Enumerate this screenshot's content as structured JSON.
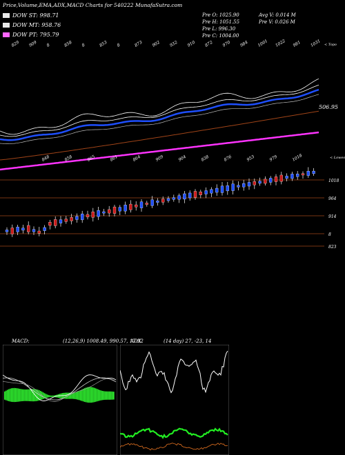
{
  "title": "Price,Volume,EMA,ADX,MACD Charts for 540222  MunafaSutra.com",
  "legend": [
    {
      "label": "DOW ST: 998.71",
      "color": "#e8e8e8"
    },
    {
      "label": "DOW MT: 958.76",
      "color": "#e8e8e8"
    },
    {
      "label": "DOW PT: 795.79",
      "color": "#ff66ff"
    }
  ],
  "info": {
    "open": "Pre   O: 1025.90",
    "high": "Pre   H: 1051.55",
    "low": "Pre   L: 996.30",
    "close": "Pre   C: 1004.00",
    "avg_vol": "Avg V: 0.014  M",
    "pre_vol": "Pre  V: 0.026  M"
  },
  "upper": {
    "top_ticks": [
      "829",
      "909",
      "8",
      "858",
      "8",
      "853",
      "8",
      "873",
      "902",
      "932",
      "910",
      "872",
      "970",
      "984",
      "1001",
      "1022",
      "981",
      "1031"
    ],
    "side_label": "< Topo",
    "price_label": "506.95",
    "colors": {
      "white_band": "#ffffff",
      "blue_ema": "#1e4fff",
      "pink_pt": "#ff33ff",
      "brown_line": "#a04418"
    }
  },
  "candles_panel": {
    "side_label": "< Lowes",
    "top_ticks": [
      "848",
      "858",
      "865",
      "861",
      "864",
      "909",
      "904",
      "838",
      "876",
      "953",
      "979",
      "1018"
    ],
    "levels": [
      "1018",
      "964",
      "914",
      "8",
      "823"
    ],
    "up_color": "#1e4fff",
    "down_color": "#cc1a1a"
  },
  "macd": {
    "label": "MACD:",
    "params": "(12,26,9) 1008.49,  990.57,  17.92"
  },
  "adx": {
    "label": "ADX",
    "params": "(14 day) 27,  -23,  14"
  }
}
